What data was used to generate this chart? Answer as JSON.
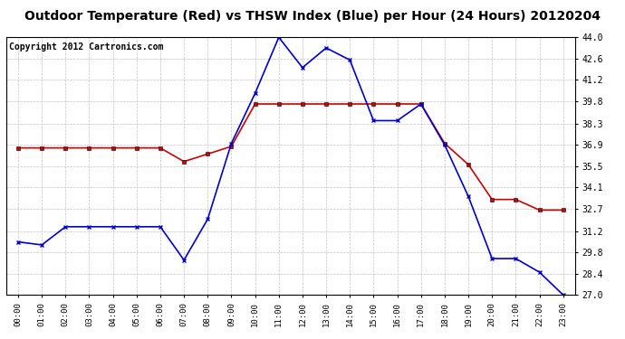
{
  "title": "Outdoor Temperature (Red) vs THSW Index (Blue) per Hour (24 Hours) 20120204",
  "copyright_text": "Copyright 2012 Cartronics.com",
  "hours": [
    "00:00",
    "01:00",
    "02:00",
    "03:00",
    "04:00",
    "05:00",
    "06:00",
    "07:00",
    "08:00",
    "09:00",
    "10:00",
    "11:00",
    "12:00",
    "13:00",
    "14:00",
    "15:00",
    "16:00",
    "17:00",
    "18:00",
    "19:00",
    "20:00",
    "21:00",
    "22:00",
    "23:00"
  ],
  "red_temp": [
    36.7,
    36.7,
    36.7,
    36.7,
    36.7,
    36.7,
    36.7,
    35.8,
    36.3,
    36.8,
    39.6,
    39.6,
    39.6,
    39.6,
    39.6,
    39.6,
    39.6,
    39.6,
    37.0,
    35.6,
    33.3,
    33.3,
    32.6,
    32.6
  ],
  "blue_thsw": [
    30.5,
    30.3,
    31.5,
    31.5,
    31.5,
    31.5,
    31.5,
    29.3,
    32.0,
    37.0,
    40.3,
    44.0,
    42.0,
    43.3,
    42.5,
    38.5,
    38.5,
    39.6,
    36.9,
    33.5,
    29.4,
    29.4,
    28.5,
    27.0
  ],
  "ylim_min": 27.0,
  "ylim_max": 44.0,
  "yticks": [
    27.0,
    28.4,
    29.8,
    31.2,
    32.7,
    34.1,
    35.5,
    36.9,
    38.3,
    39.8,
    41.2,
    42.6,
    44.0
  ],
  "red_color": "#cc0000",
  "blue_color": "#0000cc",
  "bg_color": "#ffffff",
  "grid_color": "#bbbbbb",
  "title_fontsize": 10,
  "copyright_fontsize": 7
}
